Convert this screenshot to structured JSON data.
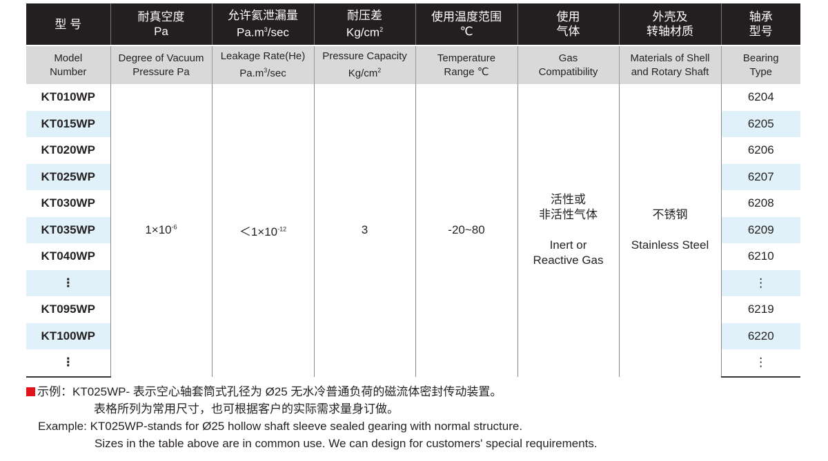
{
  "header_cn": [
    "型 号",
    "耐真空度",
    "允许氦泄漏量",
    "耐压差",
    "使用温度范围",
    "使用",
    "外壳及",
    "轴承"
  ],
  "header_cn2": [
    "",
    "Pa",
    "Pa.m",
    "Kg/cm",
    "℃",
    "气体",
    "转轴材质",
    "型号"
  ],
  "header_en": [
    [
      "Model",
      "Number"
    ],
    [
      "Degree of Vacuum",
      "Pressure Pa"
    ],
    [
      "Leakage Rate(He)",
      "Pa.m"
    ],
    [
      "Pressure Capacity",
      "Kg/cm"
    ],
    [
      "Temperature",
      "Range ℃"
    ],
    [
      "Gas",
      "Compatibility"
    ],
    [
      "Materials of Shell",
      "and Rotary Shaft"
    ],
    [
      "Bearing",
      "Type"
    ]
  ],
  "sup3": "3",
  "sup2": "2",
  "unit_tail": "/sec",
  "rows": [
    {
      "model": "KT010WP",
      "bearing": "6204"
    },
    {
      "model": "KT015WP",
      "bearing": "6205"
    },
    {
      "model": "KT020WP",
      "bearing": "6206"
    },
    {
      "model": "KT025WP",
      "bearing": "6207"
    },
    {
      "model": "KT030WP",
      "bearing": "6208"
    },
    {
      "model": "KT035WP",
      "bearing": "6209"
    },
    {
      "model": "KT040WP",
      "bearing": "6210"
    },
    {
      "model": "⋮",
      "bearing": "⋮"
    },
    {
      "model": "KT095WP",
      "bearing": "6219"
    },
    {
      "model": "KT100WP",
      "bearing": "6220"
    },
    {
      "model": "⋮",
      "bearing": "⋮"
    }
  ],
  "vacuum": {
    "base": "1×10",
    "exp": "-6"
  },
  "leak": {
    "base": "＜1×10",
    "exp": "-12"
  },
  "pressure": "3",
  "temp": "-20~80",
  "gas": {
    "cn1": "活性或",
    "cn2": "非活性气体",
    "en1": "Inert or",
    "en2": "Reactive Gas"
  },
  "material": {
    "cn": "不锈钢",
    "en": "Stainless Steel"
  },
  "notes": [
    "示例：KT025WP- 表示空心轴套筒式孔径为 Ø25 无水冷普通负荷的磁流体密封传动装置。",
    "表格所列为常用尺寸，也可根据客户的实际需求量身订做。",
    "Example: KT025WP-stands for Ø25 hollow shaft sleeve sealed gearing with normal structure.",
    "Sizes in the table above are in common use. We can design for customers' special requirements."
  ],
  "colors": {
    "header": "#231f20",
    "subheader": "#d9d9d9",
    "alt_row": "#e0f1f9",
    "marker": "#e3131b"
  }
}
